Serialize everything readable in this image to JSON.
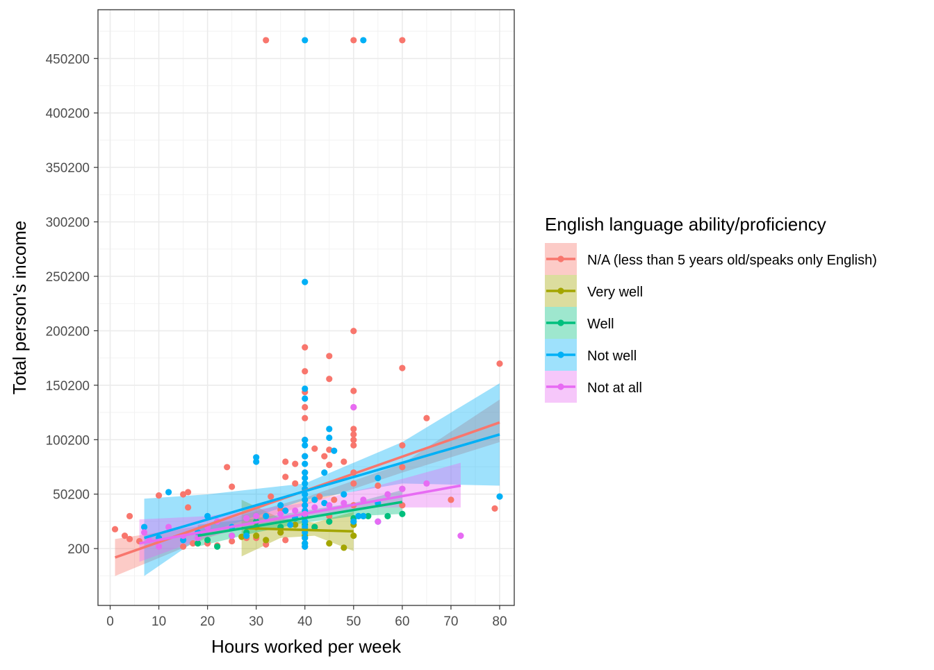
{
  "chart_data": {
    "type": "scatter",
    "xlabel": "Hours worked per week",
    "ylabel": "Total person's income",
    "xlim": [
      -2.5,
      83
    ],
    "ylim": [
      -52000,
      495000
    ],
    "xticks": [
      0,
      10,
      20,
      30,
      40,
      50,
      60,
      70,
      80
    ],
    "yticks": [
      200,
      50200,
      100200,
      150200,
      200200,
      250200,
      300200,
      350200,
      400200,
      450200
    ],
    "xtick_labels": [
      "0",
      "10",
      "20",
      "30",
      "40",
      "50",
      "60",
      "70",
      "80"
    ],
    "ytick_labels": [
      "200",
      "50200",
      "100200",
      "150200",
      "200200",
      "250200",
      "300200",
      "350200",
      "400200",
      "450200"
    ],
    "grid": true,
    "legend": {
      "title": "English language ability/proficiency",
      "position": "right"
    },
    "series": [
      {
        "name": "N/A (less than 5 years old/speaks only English)",
        "color": "#F8766D",
        "points": [
          [
            1,
            18000
          ],
          [
            3,
            12000
          ],
          [
            4,
            30000
          ],
          [
            4,
            9000
          ],
          [
            6,
            7000
          ],
          [
            10,
            49000
          ],
          [
            15,
            50000
          ],
          [
            15,
            2000
          ],
          [
            16,
            52000
          ],
          [
            16,
            38000
          ],
          [
            17,
            5000
          ],
          [
            20,
            5000
          ],
          [
            22,
            3000
          ],
          [
            24,
            75000
          ],
          [
            25,
            57000
          ],
          [
            25,
            7000
          ],
          [
            28,
            10000
          ],
          [
            30,
            10000
          ],
          [
            32,
            467000
          ],
          [
            32,
            4000
          ],
          [
            33,
            48000
          ],
          [
            35,
            36000
          ],
          [
            35,
            15000
          ],
          [
            36,
            80000
          ],
          [
            36,
            66000
          ],
          [
            36,
            8000
          ],
          [
            38,
            78000
          ],
          [
            38,
            60000
          ],
          [
            40,
            185000
          ],
          [
            40,
            163000
          ],
          [
            40,
            144000
          ],
          [
            40,
            130000
          ],
          [
            40,
            120000
          ],
          [
            40,
            100000
          ],
          [
            40,
            85000
          ],
          [
            40,
            70000
          ],
          [
            40,
            55000
          ],
          [
            40,
            40000
          ],
          [
            40,
            25000
          ],
          [
            40,
            10000
          ],
          [
            40,
            2000
          ],
          [
            42,
            92000
          ],
          [
            43,
            48000
          ],
          [
            44,
            85000
          ],
          [
            45,
            177000
          ],
          [
            45,
            156000
          ],
          [
            45,
            91000
          ],
          [
            45,
            77000
          ],
          [
            45,
            30000
          ],
          [
            46,
            45000
          ],
          [
            48,
            80000
          ],
          [
            50,
            467000
          ],
          [
            50,
            200000
          ],
          [
            50,
            145000
          ],
          [
            50,
            130000
          ],
          [
            50,
            110000
          ],
          [
            50,
            105000
          ],
          [
            50,
            100000
          ],
          [
            50,
            95000
          ],
          [
            50,
            70000
          ],
          [
            50,
            60000
          ],
          [
            50,
            40000
          ],
          [
            50,
            25000
          ],
          [
            55,
            58000
          ],
          [
            60,
            467000
          ],
          [
            60,
            166000
          ],
          [
            60,
            95000
          ],
          [
            60,
            75000
          ],
          [
            60,
            55000
          ],
          [
            60,
            40000
          ],
          [
            65,
            120000
          ],
          [
            70,
            45000
          ],
          [
            79,
            37000
          ],
          [
            80,
            170000
          ]
        ],
        "fit": {
          "x": [
            1,
            80
          ],
          "y": [
            -8000,
            116000
          ]
        },
        "band": {
          "x": [
            1,
            20,
            40,
            60,
            80
          ],
          "lower": [
            -25000,
            10000,
            40000,
            70000,
            98000
          ],
          "upper": [
            9000,
            22000,
            47000,
            78000,
            137000
          ]
        }
      },
      {
        "name": "Very well",
        "color": "#A3A500",
        "points": [
          [
            27,
            11000
          ],
          [
            30,
            20000
          ],
          [
            30,
            12000
          ],
          [
            32,
            8000
          ],
          [
            35,
            15000
          ],
          [
            38,
            22000
          ],
          [
            40,
            18000
          ],
          [
            40,
            12000
          ],
          [
            40,
            5000
          ],
          [
            42,
            20000
          ],
          [
            45,
            5000
          ],
          [
            48,
            1000
          ],
          [
            50,
            22000
          ],
          [
            50,
            12000
          ]
        ],
        "fit": {
          "x": [
            27,
            50
          ],
          "y": [
            19000,
            16000
          ]
        },
        "band": {
          "x": [
            27,
            35,
            42,
            50
          ],
          "lower": [
            -7000,
            10000,
            12000,
            -2000
          ],
          "upper": [
            45000,
            28000,
            24000,
            34000
          ]
        }
      },
      {
        "name": "Well",
        "color": "#00BF7D",
        "points": [
          [
            18,
            5000
          ],
          [
            20,
            8000
          ],
          [
            22,
            2000
          ],
          [
            25,
            12000
          ],
          [
            28,
            15000
          ],
          [
            30,
            25000
          ],
          [
            35,
            20000
          ],
          [
            38,
            28000
          ],
          [
            40,
            22000
          ],
          [
            42,
            20000
          ],
          [
            45,
            25000
          ],
          [
            50,
            28000
          ],
          [
            52,
            30000
          ],
          [
            53,
            30000
          ],
          [
            57,
            30000
          ],
          [
            60,
            32000
          ]
        ],
        "fit": {
          "x": [
            18,
            60
          ],
          "y": [
            12000,
            43000
          ]
        },
        "band": {
          "x": [
            18,
            30,
            40,
            50,
            60
          ],
          "lower": [
            2000,
            15000,
            24000,
            30000,
            32000
          ],
          "upper": [
            22000,
            28000,
            35000,
            42000,
            54000
          ]
        }
      },
      {
        "name": "Not well",
        "color": "#00B0F6",
        "points": [
          [
            7,
            20000
          ],
          [
            10,
            10000
          ],
          [
            12,
            52000
          ],
          [
            15,
            8000
          ],
          [
            18,
            15000
          ],
          [
            20,
            30000
          ],
          [
            22,
            25000
          ],
          [
            25,
            20000
          ],
          [
            28,
            12000
          ],
          [
            30,
            84000
          ],
          [
            30,
            80000
          ],
          [
            30,
            30000
          ],
          [
            32,
            30000
          ],
          [
            35,
            40000
          ],
          [
            36,
            35000
          ],
          [
            37,
            22000
          ],
          [
            38,
            28000
          ],
          [
            40,
            467000
          ],
          [
            40,
            245000
          ],
          [
            40,
            147000
          ],
          [
            40,
            138000
          ],
          [
            40,
            100000
          ],
          [
            40,
            95000
          ],
          [
            40,
            85000
          ],
          [
            40,
            78000
          ],
          [
            40,
            70000
          ],
          [
            40,
            65000
          ],
          [
            40,
            60000
          ],
          [
            40,
            55000
          ],
          [
            40,
            50000
          ],
          [
            40,
            45000
          ],
          [
            40,
            40000
          ],
          [
            40,
            35000
          ],
          [
            40,
            30000
          ],
          [
            40,
            25000
          ],
          [
            40,
            20000
          ],
          [
            40,
            15000
          ],
          [
            40,
            10000
          ],
          [
            40,
            5000
          ],
          [
            40,
            2000
          ],
          [
            42,
            45000
          ],
          [
            44,
            70000
          ],
          [
            44,
            42000
          ],
          [
            45,
            110000
          ],
          [
            45,
            102000
          ],
          [
            46,
            90000
          ],
          [
            48,
            50000
          ],
          [
            50,
            25000
          ],
          [
            51,
            30000
          ],
          [
            52,
            467000
          ],
          [
            52,
            30000
          ],
          [
            55,
            42000
          ],
          [
            55,
            25000
          ],
          [
            55,
            65000
          ],
          [
            80,
            48000
          ]
        ],
        "fit": {
          "x": [
            7,
            80
          ],
          "y": [
            10000,
            105000
          ]
        },
        "band": {
          "x": [
            7,
            20,
            40,
            60,
            80
          ],
          "lower": [
            -25000,
            15000,
            45000,
            60000,
            58000
          ],
          "upper": [
            46000,
            50000,
            60000,
            98000,
            152000
          ]
        }
      },
      {
        "name": "Not at all",
        "color": "#E76BF3",
        "points": [
          [
            7,
            15000
          ],
          [
            8,
            8000
          ],
          [
            10,
            2000
          ],
          [
            12,
            20000
          ],
          [
            15,
            12000
          ],
          [
            18,
            10000
          ],
          [
            20,
            20000
          ],
          [
            22,
            25000
          ],
          [
            25,
            12000
          ],
          [
            28,
            28000
          ],
          [
            30,
            30000
          ],
          [
            35,
            32000
          ],
          [
            38,
            35000
          ],
          [
            40,
            32000
          ],
          [
            42,
            38000
          ],
          [
            45,
            40000
          ],
          [
            48,
            42000
          ],
          [
            50,
            130000
          ],
          [
            52,
            45000
          ],
          [
            55,
            25000
          ],
          [
            57,
            50000
          ],
          [
            60,
            55000
          ],
          [
            65,
            60000
          ],
          [
            72,
            12000
          ]
        ],
        "fit": {
          "x": [
            6,
            72
          ],
          "y": [
            5000,
            58000
          ]
        },
        "band": {
          "x": [
            6,
            20,
            40,
            55,
            72
          ],
          "lower": [
            -12000,
            11000,
            30000,
            38000,
            38000
          ],
          "upper": [
            27000,
            30000,
            42000,
            58000,
            79000
          ]
        }
      }
    ]
  }
}
